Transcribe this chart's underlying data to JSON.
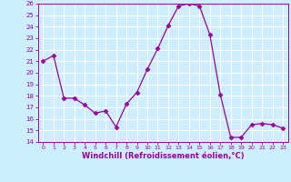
{
  "x": [
    0,
    1,
    2,
    3,
    4,
    5,
    6,
    7,
    8,
    9,
    10,
    11,
    12,
    13,
    14,
    15,
    16,
    17,
    18,
    19,
    20,
    21,
    22,
    23
  ],
  "y": [
    21,
    21.5,
    17.8,
    17.8,
    17.2,
    16.5,
    16.7,
    15.3,
    17.3,
    18.3,
    20.3,
    22.1,
    24.1,
    25.8,
    26.0,
    25.8,
    23.3,
    18.1,
    14.4,
    14.4,
    15.5,
    15.6,
    15.5,
    15.2
  ],
  "line_color": "#990099",
  "marker": "D",
  "marker_size": 2.5,
  "bg_color": "#cceeff",
  "grid_color": "#ffffff",
  "xlabel": "Windchill (Refroidissement éolien,°C)",
  "xlabel_color": "#990099",
  "tick_color": "#990099",
  "spine_color": "#990099",
  "ylim": [
    14,
    26
  ],
  "xlim": [
    -0.5,
    23.5
  ],
  "yticks": [
    14,
    15,
    16,
    17,
    18,
    19,
    20,
    21,
    22,
    23,
    24,
    25,
    26
  ],
  "xticks": [
    0,
    1,
    2,
    3,
    4,
    5,
    6,
    7,
    8,
    9,
    10,
    11,
    12,
    13,
    14,
    15,
    16,
    17,
    18,
    19,
    20,
    21,
    22,
    23
  ],
  "tick_fontsize": 5,
  "xlabel_fontsize": 6
}
